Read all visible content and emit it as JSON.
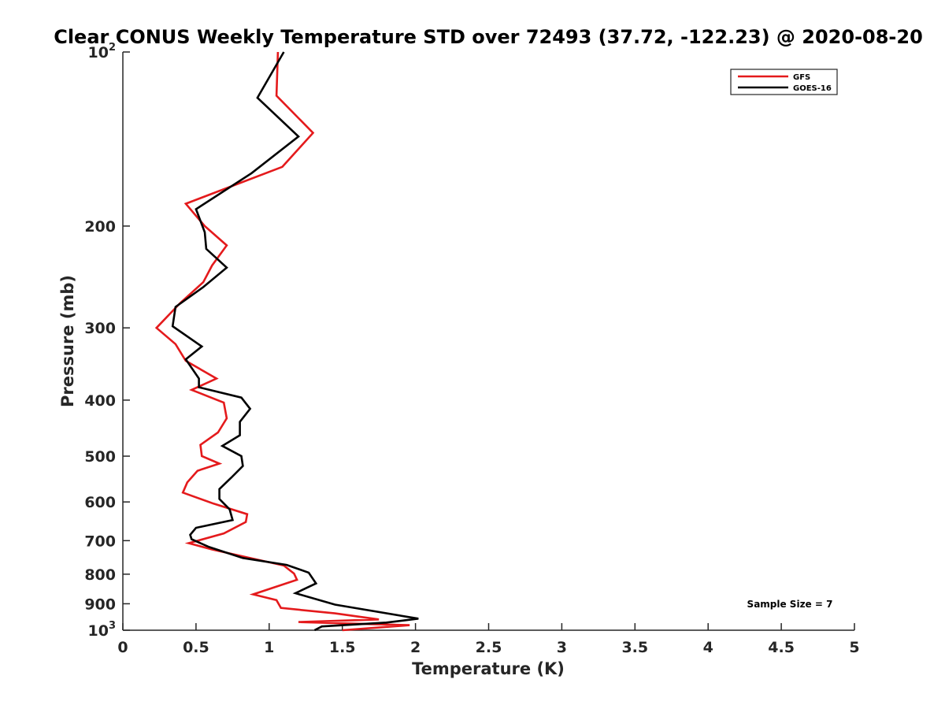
{
  "chart_data": {
    "type": "line",
    "title": "Clear CONUS Weekly Temperature STD over 72493 (37.72, -122.23) @ 2020-08-20",
    "xlabel": "Temperature (K)",
    "ylabel": "Pressure (mb)",
    "xlim": [
      0,
      5
    ],
    "ylim": [
      100,
      1000
    ],
    "y_scale": "log",
    "y_reversed": true,
    "grid": false,
    "legend_position": "top-right",
    "x_ticks": [
      "0",
      "0.5",
      "1",
      "1.5",
      "2",
      "2.5",
      "3",
      "3.5",
      "4",
      "4.5",
      "5"
    ],
    "y_ticks": [
      {
        "value": 100,
        "base": "10",
        "exp": "2"
      },
      {
        "value": 200,
        "label": "200"
      },
      {
        "value": 300,
        "label": "300"
      },
      {
        "value": 400,
        "label": "400"
      },
      {
        "value": 500,
        "label": "500"
      },
      {
        "value": 600,
        "label": "600"
      },
      {
        "value": 700,
        "label": "700"
      },
      {
        "value": 800,
        "label": "800"
      },
      {
        "value": 900,
        "label": "900"
      },
      {
        "value": 1000,
        "base": "10",
        "exp": "3"
      }
    ],
    "annotation": "Sample Size = 7",
    "series": [
      {
        "name": "GFS",
        "color": "#e41a1c",
        "points": [
          [
            1.06,
            100
          ],
          [
            1.05,
            119
          ],
          [
            1.3,
            138
          ],
          [
            1.09,
            158
          ],
          [
            0.43,
            183
          ],
          [
            0.56,
            200
          ],
          [
            0.71,
            216
          ],
          [
            0.61,
            234
          ],
          [
            0.55,
            250
          ],
          [
            0.39,
            272
          ],
          [
            0.23,
            300
          ],
          [
            0.36,
            320
          ],
          [
            0.43,
            342
          ],
          [
            0.64,
            367
          ],
          [
            0.47,
            384
          ],
          [
            0.69,
            404
          ],
          [
            0.71,
            430
          ],
          [
            0.65,
            455
          ],
          [
            0.53,
            478
          ],
          [
            0.54,
            500
          ],
          [
            0.66,
            515
          ],
          [
            0.51,
            530
          ],
          [
            0.44,
            555
          ],
          [
            0.41,
            578
          ],
          [
            0.62,
            604
          ],
          [
            0.85,
            630
          ],
          [
            0.84,
            650
          ],
          [
            0.69,
            680
          ],
          [
            0.45,
            707
          ],
          [
            0.61,
            725
          ],
          [
            1.1,
            773
          ],
          [
            1.17,
            798
          ],
          [
            1.19,
            818
          ],
          [
            0.89,
            867
          ],
          [
            1.05,
            887
          ],
          [
            1.08,
            915
          ],
          [
            1.45,
            935
          ],
          [
            1.75,
            958
          ],
          [
            1.2,
            968
          ],
          [
            1.96,
            980
          ],
          [
            1.5,
            1000
          ]
        ]
      },
      {
        "name": "GOES-16",
        "color": "#000000",
        "points": [
          [
            1.1,
            100
          ],
          [
            0.92,
            120
          ],
          [
            1.2,
            140
          ],
          [
            0.88,
            162
          ],
          [
            0.5,
            187
          ],
          [
            0.56,
            205
          ],
          [
            0.57,
            219
          ],
          [
            0.71,
            236
          ],
          [
            0.55,
            255
          ],
          [
            0.36,
            276
          ],
          [
            0.34,
            298
          ],
          [
            0.54,
            323
          ],
          [
            0.43,
            340
          ],
          [
            0.52,
            367
          ],
          [
            0.52,
            380
          ],
          [
            0.81,
            396
          ],
          [
            0.87,
            414
          ],
          [
            0.8,
            436
          ],
          [
            0.8,
            460
          ],
          [
            0.68,
            480
          ],
          [
            0.81,
            500
          ],
          [
            0.82,
            520
          ],
          [
            0.74,
            545
          ],
          [
            0.66,
            570
          ],
          [
            0.66,
            593
          ],
          [
            0.73,
            618
          ],
          [
            0.75,
            645
          ],
          [
            0.5,
            665
          ],
          [
            0.46,
            684
          ],
          [
            0.47,
            696
          ],
          [
            0.59,
            718
          ],
          [
            0.82,
            750
          ],
          [
            1.12,
            771
          ],
          [
            1.27,
            795
          ],
          [
            1.32,
            830
          ],
          [
            1.18,
            863
          ],
          [
            1.45,
            903
          ],
          [
            2.02,
            955
          ],
          [
            1.8,
            970
          ],
          [
            1.36,
            985
          ],
          [
            1.31,
            1000
          ]
        ]
      }
    ]
  }
}
